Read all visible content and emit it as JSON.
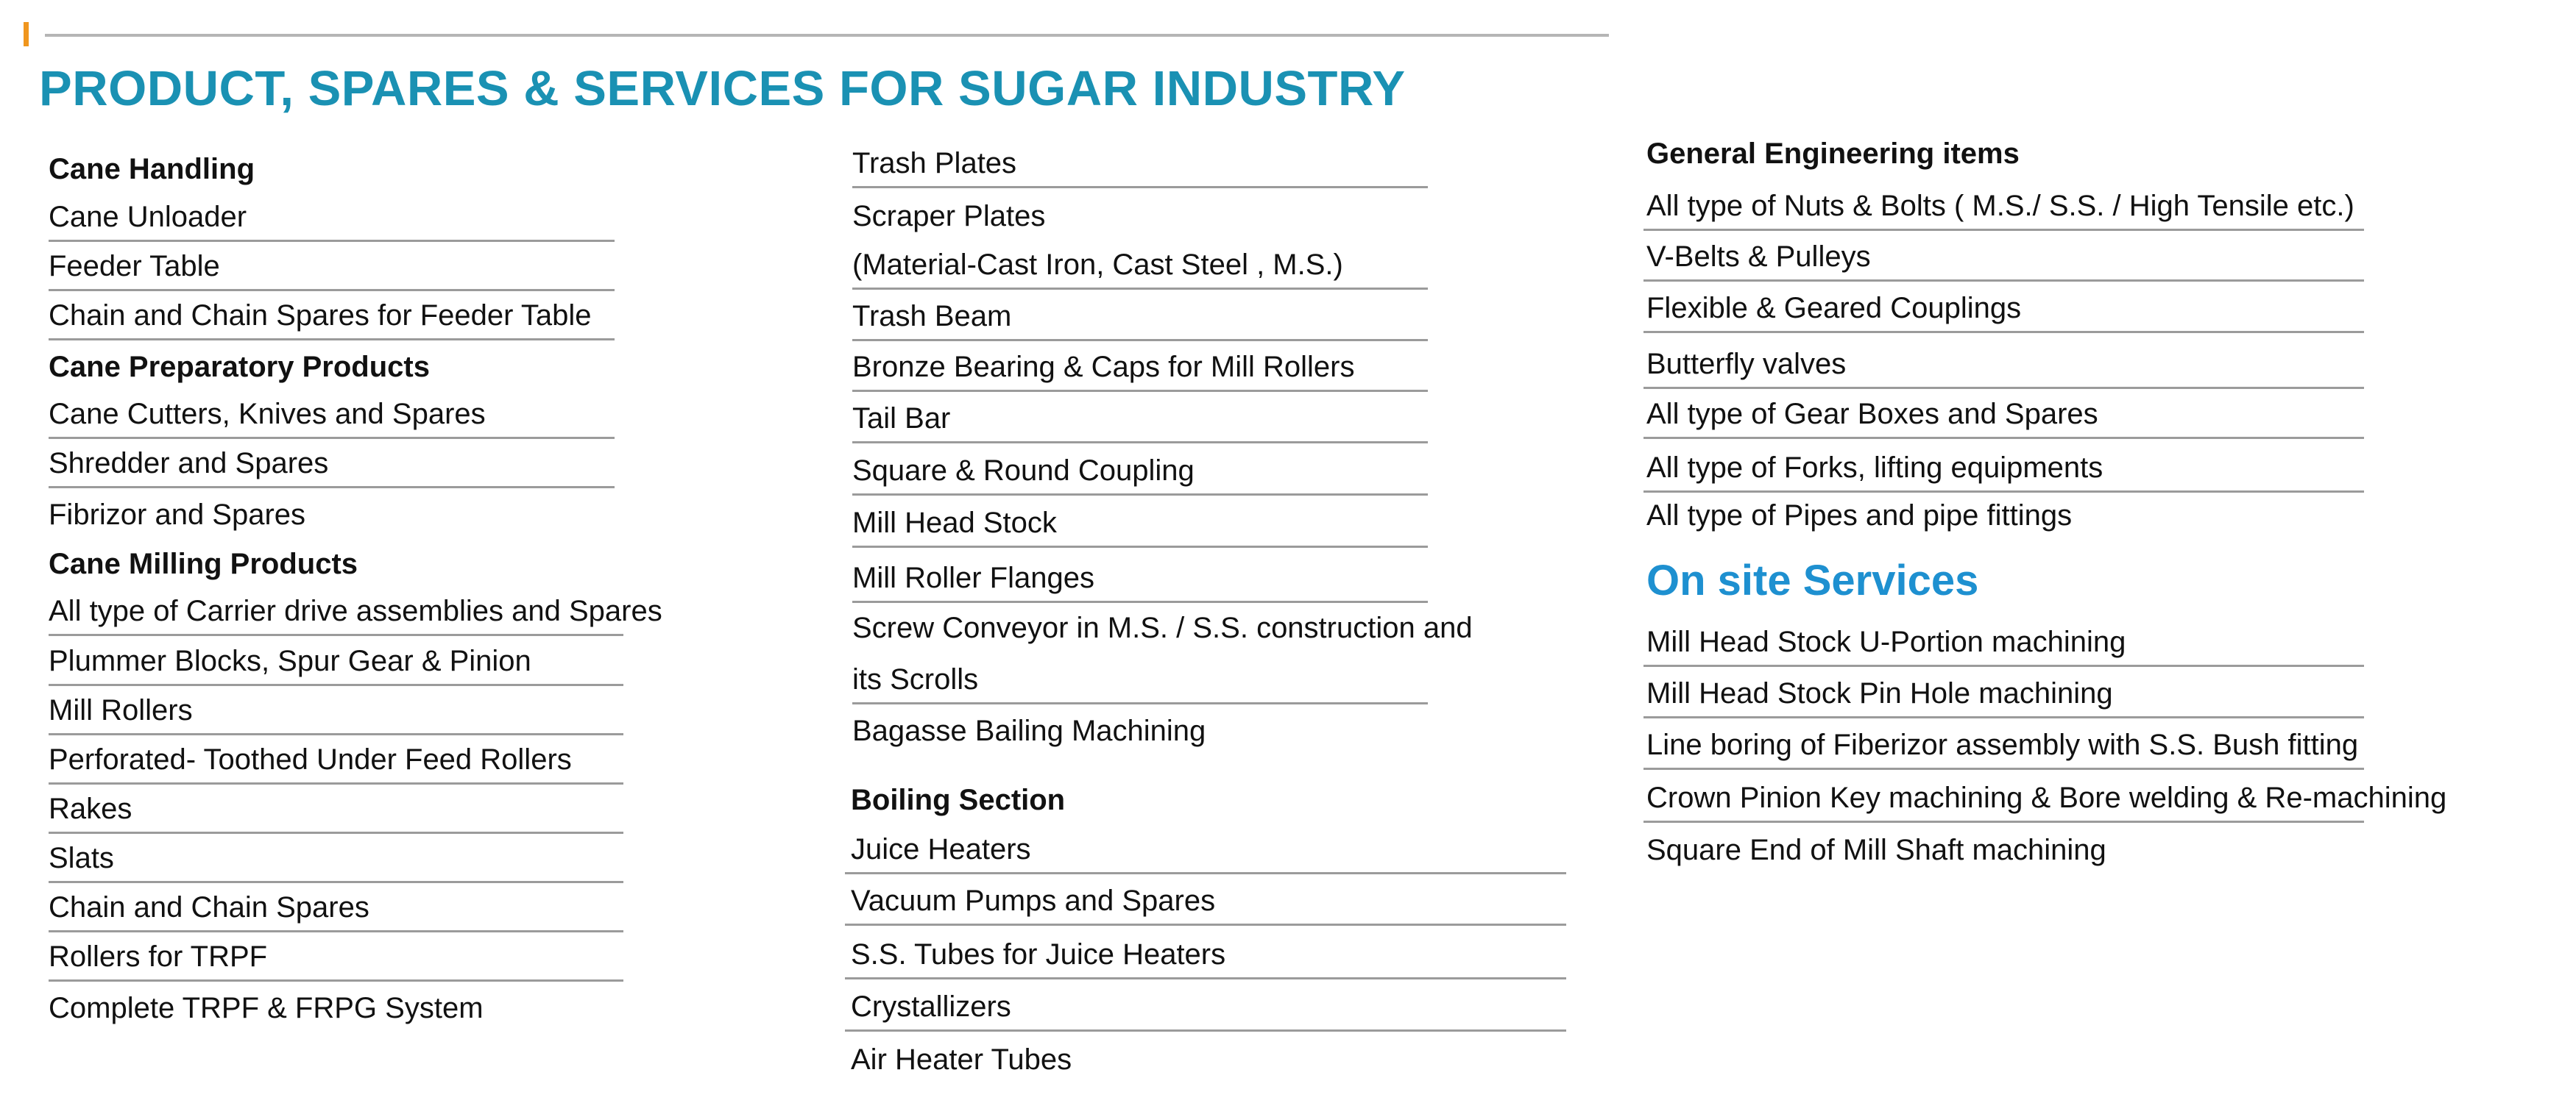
{
  "title": "PRODUCT, SPARES & SERVICES FOR SUGAR INDUSTRY",
  "colors": {
    "title": "#1a91b3",
    "services_heading": "#1e90d0",
    "accent_bar": "#f0961e",
    "rule": "#9b9b9b"
  },
  "column1": {
    "cane_handling": {
      "heading": "Cane Handling",
      "items": [
        "Cane Unloader",
        "Feeder Table",
        "Chain and Chain Spares for Feeder Table"
      ]
    },
    "cane_preparatory": {
      "heading": "Cane Preparatory Products",
      "items": [
        "Cane Cutters, Knives  and Spares",
        "Shredder and Spares",
        "Fibrizor and Spares"
      ]
    },
    "cane_milling": {
      "heading": "Cane Milling Products",
      "items": [
        "All type of Carrier drive assemblies and Spares",
        "Plummer Blocks, Spur Gear & Pinion",
        "Mill Rollers",
        "Perforated- Toothed Under Feed Rollers",
        "Rakes",
        "Slats",
        "Chain and Chain Spares",
        "Rollers for TRPF",
        "Complete TRPF & FRPG System"
      ]
    }
  },
  "column2": {
    "mill_items": [
      "Trash Plates",
      "Scraper Plates",
      "(Material-Cast Iron, Cast Steel , M.S.)",
      "Trash Beam",
      "Bronze Bearing & Caps for Mill Rollers",
      "Tail Bar",
      "Square & Round Coupling",
      "Mill Head Stock",
      "Mill Roller Flanges",
      "Screw Conveyor in M.S. / S.S. construction and",
      "its Scrolls",
      "Bagasse Bailing Machining"
    ],
    "boiling_section": {
      "heading": "Boiling Section",
      "items": [
        "Juice Heaters",
        "Vacuum Pumps and Spares",
        "S.S. Tubes for Juice Heaters",
        "Crystallizers",
        "Air Heater Tubes"
      ]
    }
  },
  "column3": {
    "general_engineering": {
      "heading": "General Engineering items",
      "items": [
        "All type of Nuts & Bolts ( M.S./ S.S. / High Tensile etc.)",
        "V-Belts & Pulleys",
        "Flexible & Geared Couplings",
        "Butterfly valves",
        "All type of Gear Boxes and Spares",
        "All type of Forks, lifting equipments",
        "All type of Pipes and pipe fittings"
      ]
    },
    "services": {
      "heading": "On site Services",
      "items": [
        "Mill Head Stock U-Portion machining",
        "Mill Head Stock Pin Hole machining",
        "Line boring of Fiberizor assembly with S.S. Bush fitting",
        "Crown Pinion Key machining & Bore welding & Re-machining",
        "Square End of Mill Shaft machining"
      ]
    }
  }
}
